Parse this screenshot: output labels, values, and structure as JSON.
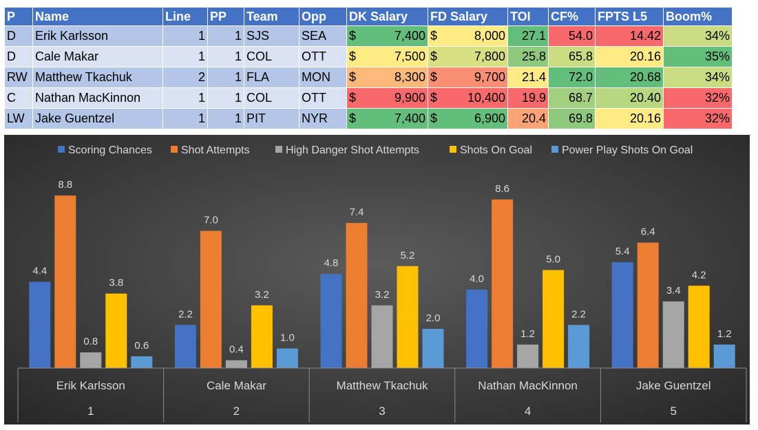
{
  "table": {
    "headers": [
      "P",
      "Name",
      "Line",
      "PP",
      "Team",
      "Opp",
      "DK Salary",
      "FD Salary",
      "TOI",
      "CF%",
      "FPTS L5",
      "Boom%"
    ],
    "currency_symbol": "$",
    "rows": [
      {
        "pos": "D",
        "name": "Erik Karlsson",
        "line": "1",
        "pp": "1",
        "team": "SJS",
        "opp": "SEA",
        "dk": "7,400",
        "fd": "8,000",
        "toi": "27.1",
        "cf": "54.0",
        "fpts": "14.42",
        "boom": "34%",
        "colors": {
          "dk": "#63be7b",
          "fd": "#ffeb84",
          "toi": "#63be7b",
          "cf": "#f8696b",
          "fpts": "#f8696b",
          "boom": "#c9dc81"
        }
      },
      {
        "pos": "D",
        "name": "Cale Makar",
        "line": "1",
        "pp": "1",
        "team": "COL",
        "opp": "OTT",
        "dk": "7,500",
        "fd": "7,800",
        "toi": "25.8",
        "cf": "65.8",
        "fpts": "20.16",
        "boom": "35%",
        "colors": {
          "dk": "#ffeb84",
          "fd": "#d7df81",
          "toi": "#8fc97e",
          "cf": "#cbdb80",
          "fpts": "#ffeb84",
          "boom": "#63be7b"
        }
      },
      {
        "pos": "RW",
        "name": "Matthew Tkachuk",
        "line": "2",
        "pp": "1",
        "team": "FLA",
        "opp": "MON",
        "dk": "8,300",
        "fd": "9,700",
        "toi": "21.4",
        "cf": "72.0",
        "fpts": "20.68",
        "boom": "34%",
        "colors": {
          "dk": "#fdb97a",
          "fd": "#fb8f73",
          "toi": "#ffeb84",
          "cf": "#63be7b",
          "fpts": "#63be7b",
          "boom": "#c9dc81"
        }
      },
      {
        "pos": "C",
        "name": "Nathan MacKinnon",
        "line": "1",
        "pp": "1",
        "team": "COL",
        "opp": "OTT",
        "dk": "9,900",
        "fd": "10,400",
        "toi": "19.9",
        "cf": "68.7",
        "fpts": "20.40",
        "boom": "32%",
        "colors": {
          "dk": "#f8696b",
          "fd": "#f8696b",
          "toi": "#f8696b",
          "cf": "#a3d07f",
          "fpts": "#b7d680",
          "boom": "#f8696b"
        }
      },
      {
        "pos": "LW",
        "name": "Jake Guentzel",
        "line": "1",
        "pp": "1",
        "team": "PIT",
        "opp": "NYR",
        "dk": "7,400",
        "fd": "6,900",
        "toi": "20.4",
        "cf": "69.8",
        "fpts": "20.16",
        "boom": "32%",
        "colors": {
          "dk": "#63be7b",
          "fd": "#63be7b",
          "toi": "#fba375",
          "cf": "#8fc97e",
          "fpts": "#ffeb84",
          "boom": "#f8696b"
        }
      }
    ]
  },
  "chart_data": {
    "type": "bar",
    "categories": [
      "Erik Karlsson",
      "Cale Makar",
      "Matthew Tkachuk",
      "Nathan MacKinnon",
      "Jake Guentzel"
    ],
    "category_numbers": [
      "1",
      "2",
      "3",
      "4",
      "5"
    ],
    "legend_position": "top",
    "grid": false,
    "ylim": [
      0,
      10
    ],
    "series": [
      {
        "name": "Scoring Chances",
        "color": "#4472c4",
        "values": [
          4.4,
          2.2,
          4.8,
          4.0,
          5.4
        ]
      },
      {
        "name": "Shot Attempts",
        "color": "#ed7d31",
        "values": [
          8.8,
          7.0,
          7.4,
          8.6,
          6.4
        ]
      },
      {
        "name": "High Danger Shot Attempts",
        "color": "#a5a5a5",
        "values": [
          0.8,
          0.4,
          3.2,
          1.2,
          3.4
        ]
      },
      {
        "name": "Shots On Goal",
        "color": "#ffc000",
        "values": [
          3.8,
          3.2,
          5.2,
          5.0,
          4.2
        ]
      },
      {
        "name": "Power Play Shots On Goal",
        "color": "#5b9bd5",
        "values": [
          0.6,
          1.0,
          2.0,
          2.2,
          1.2
        ]
      }
    ]
  }
}
